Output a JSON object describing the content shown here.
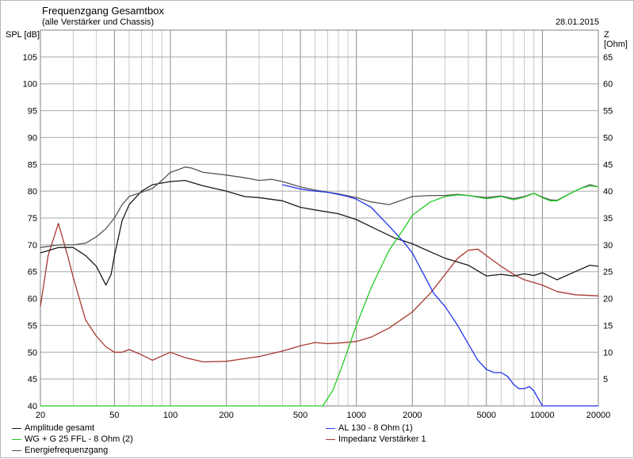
{
  "header": {
    "title": "Frequenzgang Gesamtbox",
    "subtitle": "(alle Verstärker und Chassis)",
    "date": "28.01.2015"
  },
  "axes": {
    "left_label": "SPL [dB]",
    "right_label": "Z [Ohm]"
  },
  "chart_data": {
    "type": "line",
    "x_scale": "log",
    "xlim": [
      20,
      20000
    ],
    "x_ticks": [
      20,
      50,
      100,
      200,
      500,
      1000,
      2000,
      5000,
      10000,
      20000
    ],
    "ylim_left": [
      40,
      110
    ],
    "y_ticks_left": [
      40,
      45,
      50,
      55,
      60,
      65,
      70,
      75,
      80,
      85,
      90,
      95,
      100,
      105
    ],
    "ylim_right": [
      0,
      70
    ],
    "y_ticks_right": [
      5,
      10,
      15,
      20,
      25,
      30,
      35,
      40,
      45,
      50,
      55,
      60,
      65
    ],
    "grid": true,
    "legend_position": "bottom",
    "series": [
      {
        "name": "Amplitude gesamt",
        "color": "#1a1a1a",
        "axis": "left",
        "x": [
          20,
          25,
          30,
          35,
          40,
          45,
          48,
          50,
          55,
          60,
          70,
          80,
          100,
          120,
          150,
          200,
          250,
          300,
          400,
          500,
          600,
          800,
          1000,
          1300,
          1600,
          2000,
          2500,
          3000,
          4000,
          5000,
          6000,
          7000,
          8000,
          9000,
          10000,
          12000,
          15000,
          18000,
          20000
        ],
        "y": [
          68.5,
          69.5,
          69.5,
          68,
          66,
          62.5,
          64.5,
          68,
          74.5,
          77.5,
          80,
          81.2,
          81.8,
          82,
          81,
          80,
          79,
          78.8,
          78.2,
          77,
          76.5,
          75.8,
          74.7,
          72.8,
          71.3,
          70.2,
          68.7,
          67.5,
          66.2,
          64.2,
          64.5,
          64.2,
          64.6,
          64.3,
          64.8,
          63.5,
          65,
          66.2,
          66
        ]
      },
      {
        "name": "AL 130 - 8 Ohm (1)",
        "color": "#2233ee",
        "axis": "left",
        "x": [
          400,
          500,
          600,
          700,
          800,
          900,
          1000,
          1200,
          1500,
          1800,
          2000,
          2300,
          2600,
          3000,
          3500,
          4000,
          4500,
          5000,
          5500,
          6000,
          6500,
          7000,
          7500,
          8000,
          8500,
          9000,
          10000,
          20000
        ],
        "y": [
          81.2,
          80.4,
          80,
          79.8,
          79.4,
          79,
          78.5,
          77,
          73.5,
          70.5,
          68.5,
          64.5,
          61,
          58.5,
          55,
          51.5,
          48.5,
          46.8,
          46.2,
          46.2,
          45.5,
          44,
          43.2,
          43.2,
          43.6,
          42.8,
          40,
          40
        ]
      },
      {
        "name": "WG + G 25 FFL - 8 Ohm (2)",
        "color": "#22cc22",
        "axis": "left",
        "x": [
          20,
          660,
          750,
          850,
          1000,
          1200,
          1500,
          1800,
          2000,
          2500,
          3000,
          3500,
          4000,
          5000,
          6000,
          7000,
          8000,
          9000,
          10000,
          11000,
          12000,
          14000,
          16000,
          18000,
          20000
        ],
        "y": [
          40,
          40,
          43,
          48,
          55,
          62,
          69,
          73,
          75.5,
          78,
          79,
          79.3,
          79.2,
          78.6,
          79,
          78.4,
          78.9,
          79.6,
          78.8,
          78.2,
          78.2,
          79.5,
          80.5,
          81,
          80.8
        ]
      },
      {
        "name": "Impedanz Verstärker 1",
        "color": "#a83830",
        "axis": "right",
        "x": [
          20,
          22,
          25,
          28,
          30,
          35,
          40,
          45,
          50,
          55,
          60,
          70,
          80,
          100,
          120,
          150,
          200,
          250,
          300,
          400,
          500,
          600,
          700,
          800,
          1000,
          1200,
          1500,
          2000,
          2500,
          3000,
          3500,
          4000,
          4500,
          5000,
          6000,
          7000,
          8000,
          10000,
          12000,
          15000,
          20000
        ],
        "y": [
          18.5,
          28,
          34,
          28,
          24,
          16,
          13,
          11,
          10,
          10,
          10.5,
          9.5,
          8.5,
          10,
          9,
          8.2,
          8.3,
          8.8,
          9.2,
          10.2,
          11.2,
          11.8,
          11.6,
          11.7,
          12,
          12.8,
          14.5,
          17.5,
          21,
          24.5,
          27.5,
          29,
          29.2,
          28,
          26,
          24.5,
          23.5,
          22.5,
          21.3,
          20.7,
          20.5
        ]
      },
      {
        "name": "Energiefrequenzgang",
        "color": "#555555",
        "axis": "left",
        "x": [
          20,
          25,
          30,
          35,
          40,
          45,
          50,
          55,
          60,
          70,
          80,
          90,
          100,
          110,
          120,
          130,
          150,
          200,
          250,
          300,
          350,
          400,
          500,
          600,
          800,
          1000,
          1200,
          1500,
          2000,
          2500,
          3000,
          3500,
          4000,
          5000,
          6000,
          7000,
          8000,
          9000,
          10000,
          11000,
          12000,
          14000,
          16000,
          18000,
          20000
        ],
        "y": [
          69.5,
          70,
          70,
          70.3,
          71.5,
          73,
          75,
          77.5,
          79,
          79.8,
          80.5,
          82,
          83.5,
          84,
          84.5,
          84.3,
          83.5,
          83,
          82.5,
          82,
          82.2,
          81.8,
          80.8,
          80.2,
          79.5,
          78.8,
          78,
          77.5,
          79,
          79.2,
          79.2,
          79.4,
          79.2,
          78.8,
          79.1,
          78.6,
          79,
          79.6,
          78.9,
          78.4,
          78.3,
          79.5,
          80.5,
          81.2,
          80.8
        ]
      }
    ]
  },
  "legend": [
    {
      "label": "Amplitude gesamt",
      "color": "#1a1a1a"
    },
    {
      "label": "WG + G 25 FFL - 8 Ohm (2)",
      "color": "#22cc22"
    },
    {
      "label": "Energiefrequenzgang",
      "color": "#555555"
    },
    {
      "label": "AL 130 - 8 Ohm (1)",
      "color": "#2233ee"
    },
    {
      "label": "Impedanz Verstärker 1",
      "color": "#a83830"
    }
  ]
}
